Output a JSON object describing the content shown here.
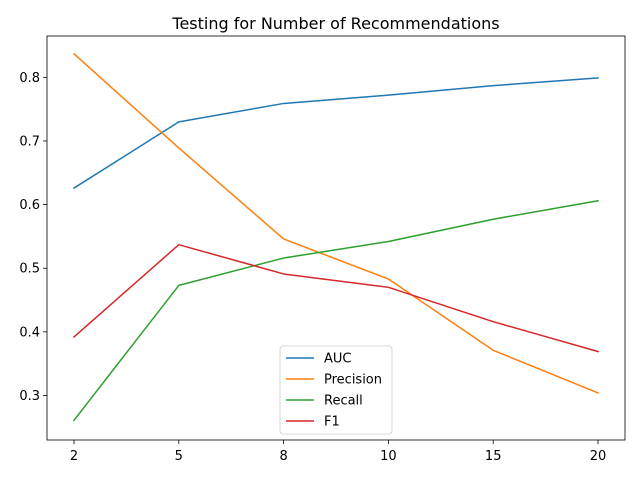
{
  "chart_data": {
    "type": "line",
    "title": "Testing for Number of Recommendations",
    "xlabel": "",
    "ylabel": "",
    "categories": [
      "2",
      "5",
      "8",
      "10",
      "15",
      "20"
    ],
    "y_ticks": [
      "0.3",
      "0.4",
      "0.5",
      "0.6",
      "0.7",
      "0.8"
    ],
    "ylim": [
      0.23,
      0.865
    ],
    "grid": false,
    "legend_position": "lower-center",
    "series": [
      {
        "name": "AUC",
        "color": "#1f77b4",
        "values": [
          0.626,
          0.73,
          0.759,
          0.772,
          0.787,
          0.799
        ]
      },
      {
        "name": "Precision",
        "color": "#ff7f0e",
        "values": [
          0.837,
          0.689,
          0.546,
          0.483,
          0.371,
          0.304
        ]
      },
      {
        "name": "Recall",
        "color": "#2ca02c",
        "values": [
          0.261,
          0.473,
          0.516,
          0.542,
          0.577,
          0.606
        ]
      },
      {
        "name": "F1",
        "color": "#d62728",
        "values": [
          0.392,
          0.537,
          0.491,
          0.47,
          0.416,
          0.369
        ]
      }
    ]
  }
}
